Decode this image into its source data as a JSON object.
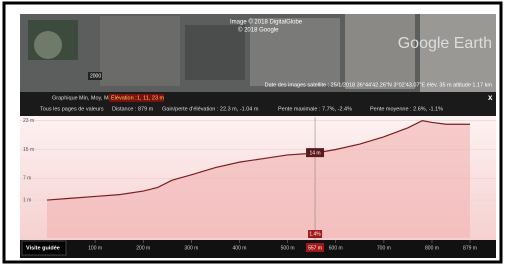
{
  "imagery": {
    "credits": [
      "Image © 2018 DigitalGlobe",
      "© 2018 Google"
    ],
    "logo": "Google Earth",
    "scale_label": "2000",
    "status": "Date des images satellite : 25/1/2018    36°44'42.26\"N    3°02'43.07\"E    élév.  35 m    altitude  1.17 km"
  },
  "toolbar": {
    "chart_label": "Graphique :",
    "chart_mode": "Min, Moy, Max",
    "elevation_label": "Élévation :",
    "elevation_value": "1, 11, 23 m",
    "close": "x",
    "stats": [
      "Tous les pages de valeurs",
      "Distance : 879 m",
      "Gain/perte d'élévation : 22.3 m, -1.04 m",
      "Pente maximale : 7.7%, -2.4%",
      "Pente moyenne : 2.6%, -1.1%"
    ]
  },
  "chart_data": {
    "type": "area",
    "x": [
      0,
      50,
      100,
      150,
      200,
      230,
      260,
      300,
      350,
      400,
      450,
      500,
      557,
      600,
      650,
      700,
      750,
      780,
      800,
      830,
      879
    ],
    "values": [
      1,
      1.5,
      2,
      2.5,
      3.5,
      4.5,
      6.5,
      8,
      10,
      11.5,
      12.5,
      13.5,
      14,
      15,
      16.5,
      18.5,
      21,
      23,
      22.5,
      22,
      22
    ],
    "color": "#7a1f1f",
    "fill": "#f2b3b3",
    "xlim": [
      0,
      879
    ],
    "ylim": [
      -9.5,
      24
    ],
    "xticks": [
      {
        "value": 100,
        "label": "100 m"
      },
      {
        "value": 200,
        "label": "200 m"
      },
      {
        "value": 300,
        "label": "300 m"
      },
      {
        "value": 400,
        "label": "400 m"
      },
      {
        "value": 500,
        "label": "500 m"
      },
      {
        "value": 600,
        "label": "600 m"
      },
      {
        "value": 700,
        "label": "700 m"
      },
      {
        "value": 800,
        "label": "800 m"
      },
      {
        "value": 879,
        "label": "879 m"
      }
    ],
    "yticks": [
      {
        "value": 1,
        "label": "1 m"
      },
      {
        "value": 7,
        "label": "7 m"
      },
      {
        "value": 15,
        "label": "15 m"
      },
      {
        "value": 23,
        "label": "23 m"
      }
    ],
    "grid": true,
    "cursor": {
      "distance": {
        "value": 557,
        "label": "557 m"
      },
      "elevation": {
        "value": 14,
        "label": "14 m"
      },
      "slope": "1.4%"
    }
  },
  "button": "Visite guidée"
}
